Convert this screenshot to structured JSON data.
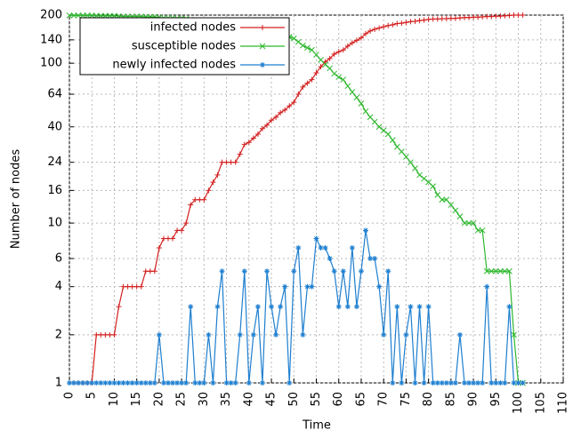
{
  "chart_data": {
    "type": "line",
    "xlabel": "Time",
    "ylabel": "Number of nodes",
    "yscale": "log",
    "grid": true,
    "legend": "upper left",
    "xlim": [
      0,
      110
    ],
    "xticks": [
      0,
      5,
      10,
      15,
      20,
      25,
      30,
      35,
      40,
      45,
      50,
      55,
      60,
      65,
      70,
      75,
      80,
      85,
      90,
      95,
      100,
      105,
      110
    ],
    "ylim": [
      1,
      200
    ],
    "yticks": [
      1,
      2,
      4,
      6,
      10,
      16,
      24,
      40,
      64,
      100,
      140,
      200
    ],
    "x": [
      0,
      1,
      2,
      3,
      4,
      5,
      6,
      7,
      8,
      9,
      10,
      11,
      12,
      13,
      14,
      15,
      16,
      17,
      18,
      19,
      20,
      21,
      22,
      23,
      24,
      25,
      26,
      27,
      28,
      29,
      30,
      31,
      32,
      33,
      34,
      35,
      36,
      37,
      38,
      39,
      40,
      41,
      42,
      43,
      44,
      45,
      46,
      47,
      48,
      49,
      50,
      51,
      52,
      53,
      54,
      55,
      56,
      57,
      58,
      59,
      60,
      61,
      62,
      63,
      64,
      65,
      66,
      67,
      68,
      69,
      70,
      71,
      72,
      73,
      74,
      75,
      76,
      77,
      78,
      79,
      80,
      81,
      82,
      83,
      84,
      85,
      86,
      87,
      88,
      89,
      90,
      91,
      92,
      93,
      94,
      95,
      96,
      97,
      98,
      99,
      100,
      101
    ],
    "series": [
      {
        "name": "infected nodes",
        "color": "#d42020",
        "marker": "plus",
        "values": [
          1,
          1,
          1,
          1,
          1,
          1,
          2,
          2,
          2,
          2,
          2,
          3,
          4,
          4,
          4,
          4,
          4,
          5,
          5,
          5,
          7,
          8,
          8,
          8,
          9,
          9,
          10,
          13,
          14,
          14,
          14,
          16,
          18,
          20,
          24,
          24,
          24,
          24,
          27,
          31,
          32,
          34,
          36,
          39,
          41,
          44,
          46,
          49,
          51,
          54,
          57,
          64,
          71,
          75,
          79,
          87,
          95,
          102,
          107,
          114,
          118,
          121,
          128,
          134,
          139,
          144,
          153,
          159,
          163,
          166,
          169,
          172,
          174,
          177,
          178,
          180,
          182,
          183,
          185,
          186,
          188,
          189,
          189,
          190,
          190,
          191,
          191,
          192,
          193,
          193,
          194,
          194,
          195,
          196,
          196,
          197,
          197,
          198,
          199,
          200,
          200,
          200
        ]
      },
      {
        "name": "susceptible nodes",
        "color": "#2eb82e",
        "marker": "cross",
        "values": [
          199,
          199,
          199,
          199,
          199,
          199,
          198,
          198,
          198,
          198,
          198,
          197,
          196,
          196,
          196,
          196,
          196,
          195,
          195,
          195,
          193,
          192,
          192,
          192,
          191,
          191,
          190,
          187,
          186,
          186,
          186,
          184,
          182,
          180,
          176,
          176,
          176,
          176,
          173,
          169,
          168,
          166,
          164,
          161,
          159,
          156,
          154,
          151,
          149,
          146,
          143,
          136,
          129,
          125,
          121,
          113,
          105,
          98,
          93,
          86,
          82,
          79,
          72,
          66,
          61,
          56,
          50,
          46,
          43,
          40,
          38,
          36,
          33,
          30,
          28,
          26,
          24,
          22,
          20,
          19,
          18,
          17,
          15,
          14,
          14,
          13,
          12,
          11,
          10,
          10,
          10,
          9,
          9,
          5,
          5,
          5,
          5,
          5,
          5,
          2,
          1,
          1
        ]
      },
      {
        "name": "newly infected nodes",
        "color": "#1e7fd0",
        "marker": "star",
        "values": [
          1,
          1,
          1,
          1,
          1,
          1,
          1,
          1,
          1,
          1,
          1,
          1,
          1,
          1,
          1,
          1,
          1,
          1,
          1,
          1,
          2,
          1,
          1,
          1,
          1,
          1,
          1,
          3,
          1,
          1,
          1,
          2,
          1,
          3,
          5,
          1,
          1,
          1,
          2,
          5,
          1,
          2,
          3,
          1,
          5,
          3,
          2,
          3,
          4,
          1,
          5,
          7,
          2,
          4,
          4,
          8,
          7,
          7,
          6,
          5,
          3,
          5,
          3,
          7,
          3,
          5,
          9,
          6,
          6,
          4,
          2,
          5,
          1,
          3,
          1,
          2,
          3,
          1,
          3,
          1,
          3,
          1,
          1,
          1,
          1,
          1,
          1,
          2,
          1,
          1,
          1,
          1,
          1,
          4,
          1,
          1,
          1,
          1,
          3,
          1,
          1,
          1
        ]
      }
    ]
  }
}
